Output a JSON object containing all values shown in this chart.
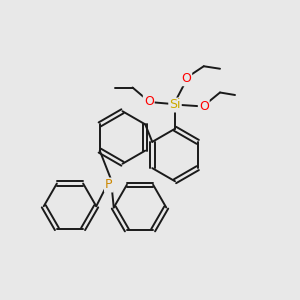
{
  "background_color": "#e8e8e8",
  "bond_color": "#1a1a1a",
  "O_color": "#ff0000",
  "Si_color": "#ccaa00",
  "P_color": "#cc8800",
  "line_width": 1.4,
  "fig_width": 3.0,
  "fig_height": 3.0,
  "dpi": 100,
  "xlim": [
    0,
    12
  ],
  "ylim": [
    0,
    12
  ]
}
